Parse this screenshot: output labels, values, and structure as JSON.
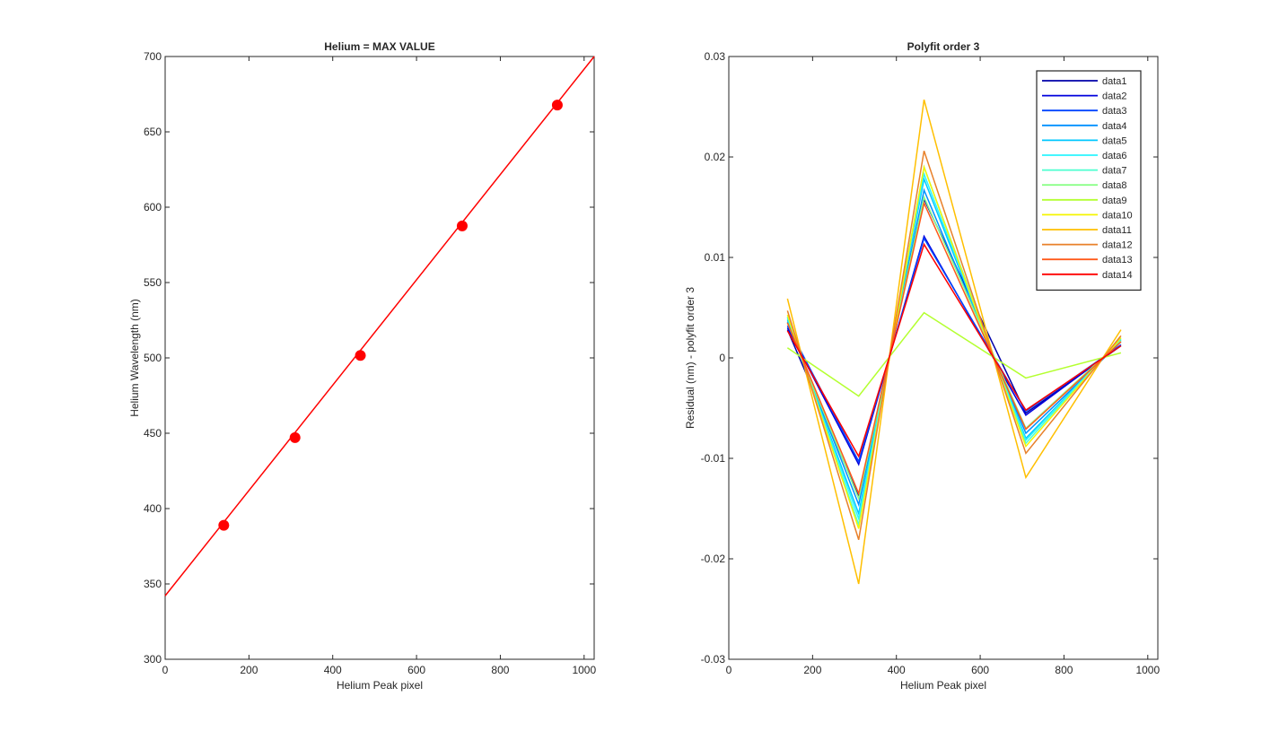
{
  "chart_data": [
    {
      "type": "line",
      "title": "Helium = MAX VALUE",
      "xlabel": "Helium Peak pixel",
      "ylabel": "Helium Wavelength (nm)",
      "xlim": [
        0,
        1024
      ],
      "ylim": [
        300,
        700
      ],
      "xticks": [
        "0",
        "200",
        "400",
        "600",
        "800",
        "1000"
      ],
      "yticks": [
        "300",
        "350",
        "400",
        "450",
        "500",
        "550",
        "600",
        "650",
        "700"
      ],
      "grid": false,
      "colors": {
        "fit": "#ff0000",
        "points": "#ff0000"
      },
      "series": [
        {
          "kind": "line",
          "x": [
            0,
            1024
          ],
          "y": [
            342.1,
            700.0
          ]
        },
        {
          "kind": "markers",
          "x": [
            140,
            310,
            466,
            709,
            936
          ],
          "y": [
            388.9,
            447.1,
            501.6,
            587.6,
            667.8
          ]
        }
      ]
    },
    {
      "type": "line",
      "title": "Polyfit order 3",
      "xlabel": "Helium Peak pixel",
      "ylabel": "Residual (nm) - polyfit order 3",
      "xlim": [
        0,
        1024
      ],
      "ylim": [
        -0.03,
        0.03
      ],
      "xticks": [
        "0",
        "200",
        "400",
        "600",
        "800",
        "1000"
      ],
      "yticks": [
        "-0.03",
        "-0.02",
        "-0.01",
        "0",
        "0.01",
        "0.02",
        "0.03"
      ],
      "grid": false,
      "legend": "top-right",
      "x": [
        140,
        310,
        466,
        709,
        936
      ],
      "series": [
        {
          "name": "data1",
          "color": "#0000aa",
          "values": [
            0.0028,
            -0.0138,
            0.0158,
            -0.0055,
            0.0012
          ]
        },
        {
          "name": "data2",
          "color": "#0000dd",
          "values": [
            0.003,
            -0.0106,
            0.0121,
            -0.0057,
            0.0013
          ]
        },
        {
          "name": "data3",
          "color": "#0044ff",
          "values": [
            0.0032,
            -0.0103,
            0.0119,
            -0.0053,
            0.0013
          ]
        },
        {
          "name": "data4",
          "color": "#0090ff",
          "values": [
            0.0036,
            -0.0146,
            0.0167,
            -0.0075,
            0.0016
          ]
        },
        {
          "name": "data5",
          "color": "#00c8ff",
          "values": [
            0.0038,
            -0.0155,
            0.0178,
            -0.008,
            0.0018
          ]
        },
        {
          "name": "data6",
          "color": "#2af5ff",
          "values": [
            0.004,
            -0.016,
            0.0183,
            -0.0082,
            0.0019
          ]
        },
        {
          "name": "data7",
          "color": "#4dffd0",
          "values": [
            0.0041,
            -0.0166,
            0.019,
            -0.0085,
            0.002
          ]
        },
        {
          "name": "data8",
          "color": "#8cff88",
          "values": [
            0.0035,
            -0.014,
            0.016,
            -0.007,
            0.0017
          ]
        },
        {
          "name": "data9",
          "color": "#b4ff30",
          "values": [
            0.001,
            -0.0038,
            0.0045,
            -0.002,
            0.0005
          ]
        },
        {
          "name": "data10",
          "color": "#f5f500",
          "values": [
            0.0043,
            -0.017,
            0.019,
            -0.0088,
            0.002
          ]
        },
        {
          "name": "data11",
          "color": "#ffbf00",
          "values": [
            0.0059,
            -0.0225,
            0.0257,
            -0.0119,
            0.0028
          ]
        },
        {
          "name": "data12",
          "color": "#e8802a",
          "values": [
            0.0047,
            -0.0181,
            0.0206,
            -0.0095,
            0.0022
          ]
        },
        {
          "name": "data13",
          "color": "#ff5a1a",
          "values": [
            0.0035,
            -0.0135,
            0.0154,
            -0.0071,
            0.0016
          ]
        },
        {
          "name": "data14",
          "color": "#ff0000",
          "values": [
            0.0027,
            -0.0098,
            0.0113,
            -0.0052,
            0.0012
          ]
        }
      ]
    }
  ]
}
